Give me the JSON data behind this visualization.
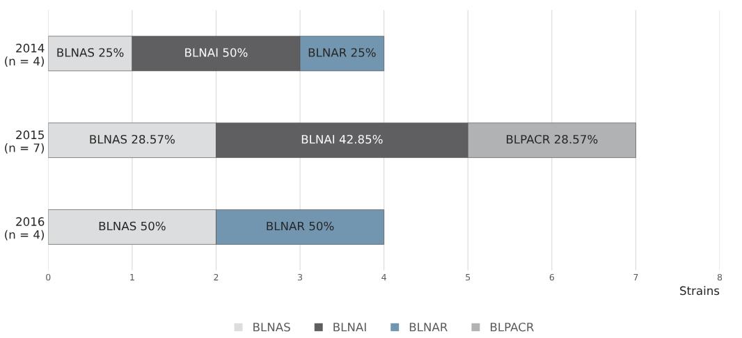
{
  "chart_data": {
    "type": "bar",
    "orientation": "horizontal",
    "stacked": true,
    "categories": [
      "2014\n(n = 4)",
      "2015\n(n = 7)",
      "2016\n(n = 4)"
    ],
    "series": [
      {
        "name": "BLNAS",
        "color": "#dcddde",
        "values": [
          1,
          2,
          2
        ],
        "value_labels": [
          "BLNAS 25%",
          "BLNAS 28.57%",
          "BLNAS 50%"
        ]
      },
      {
        "name": "BLNAI",
        "color": "#5f5f61",
        "values": [
          2,
          3,
          null
        ],
        "value_labels": [
          "BLNAI 50%",
          "BLNAI 42.85%",
          null
        ]
      },
      {
        "name": "BLNAR",
        "color": "#7396b0",
        "values": [
          1,
          null,
          2
        ],
        "value_labels": [
          "BLNAR 25%",
          null,
          "BLNAR 50%"
        ]
      },
      {
        "name": "BLPACR",
        "color": "#b1b2b4",
        "values": [
          null,
          2,
          null
        ],
        "value_labels": [
          null,
          "BLPACR 28.57%",
          null
        ]
      }
    ],
    "xlabel": "Strains",
    "xlim": [
      0,
      8
    ],
    "xticks": [
      0,
      1,
      2,
      3,
      4,
      5,
      6,
      7,
      8
    ],
    "grid": "x",
    "legend": "bottom"
  }
}
